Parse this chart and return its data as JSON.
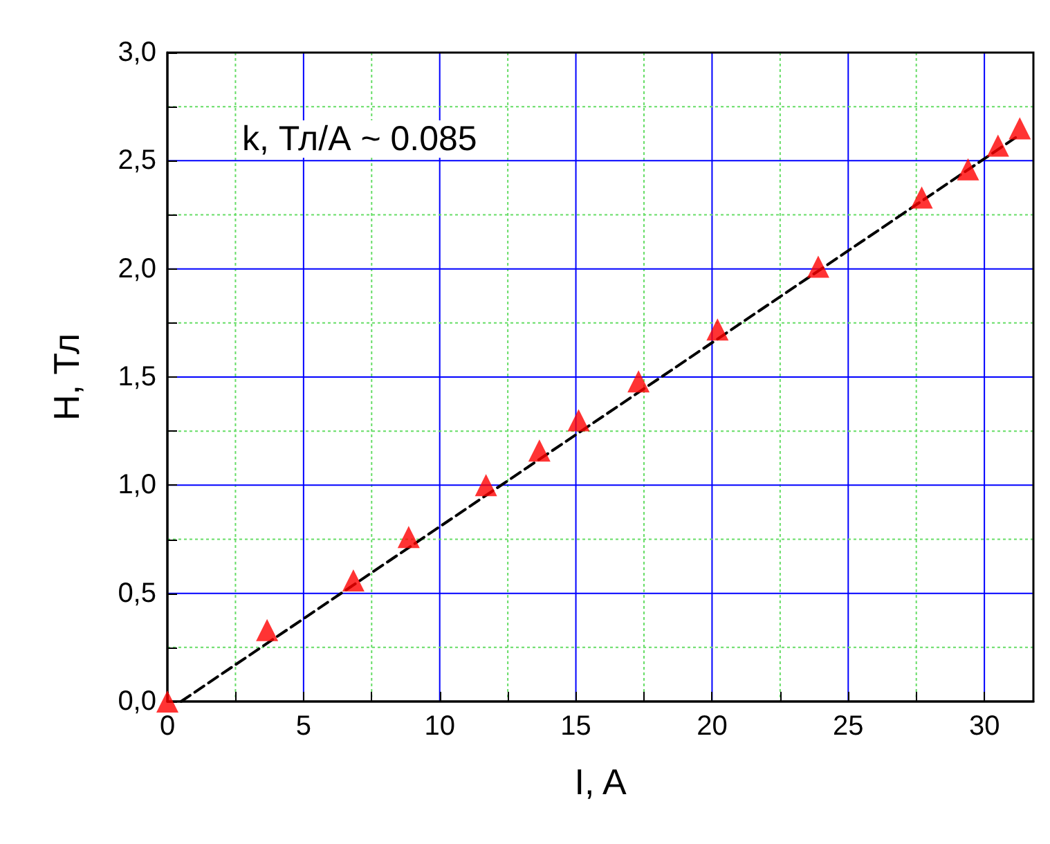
{
  "chart_data": {
    "type": "scatter",
    "xlabel": "I, A",
    "ylabel": "H, Тл",
    "annotations": [
      "k, Тл/А ~ 0.085"
    ],
    "series": [
      {
        "color": "#ff0000",
        "marker": "triangle",
        "x": [
          0,
          3.66,
          6.83,
          8.86,
          11.7,
          13.66,
          15.1,
          17.3,
          20.2,
          23.9,
          27.7,
          29.4,
          30.5,
          31.3
        ],
        "values": [
          0,
          0.33,
          0.56,
          0.76,
          1.0,
          1.16,
          1.3,
          1.48,
          1.72,
          2.01,
          2.33,
          2.46,
          2.57,
          2.65
        ]
      },
      {
        "type": "line",
        "color": "#000000",
        "line_style": "dashed",
        "marker": "none",
        "x": [
          0.5,
          31.3
        ],
        "values": [
          0,
          2.62
        ]
      }
    ],
    "xlim": [
      0,
      31.8
    ],
    "xticks": [
      0,
      {
        "value": 2.5,
        "label": null
      },
      5,
      {
        "value": 7.5,
        "label": null
      },
      10,
      {
        "value": 12.5,
        "label": null
      },
      15,
      {
        "value": 17.5,
        "label": null
      },
      20,
      {
        "value": 22.5,
        "label": null
      },
      25,
      {
        "value": 27.5,
        "label": null
      },
      30
    ],
    "ylim": [
      0,
      3
    ],
    "yticks": [
      {
        "value": 0,
        "label": "0,0"
      },
      {
        "value": 0.25,
        "label": null
      },
      {
        "value": 0.5,
        "label": "0,5"
      },
      {
        "value": 0.75,
        "label": null
      },
      {
        "value": 1,
        "label": "1,0"
      },
      {
        "value": 1.25,
        "label": null
      },
      {
        "value": 1.5,
        "label": "1,5"
      },
      {
        "value": 1.75,
        "label": null
      },
      {
        "value": 2,
        "label": "2,0"
      },
      {
        "value": 2.25,
        "label": null
      },
      {
        "value": 2.5,
        "label": "2,5"
      },
      {
        "value": 2.75,
        "label": null
      },
      {
        "value": 3,
        "label": "3,0"
      }
    ],
    "grid": true
  }
}
